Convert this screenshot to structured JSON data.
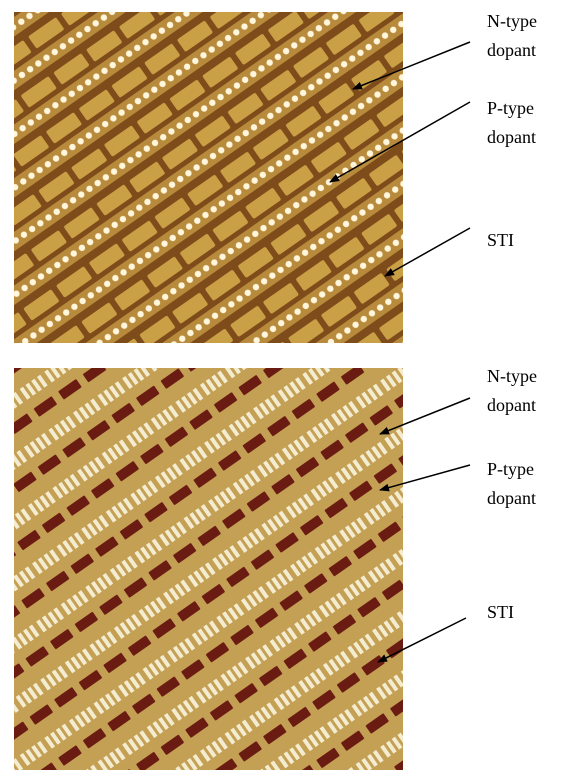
{
  "panels": [
    {
      "annotations": [
        {
          "lines": [
            "N-type",
            "dopant"
          ]
        },
        {
          "lines": [
            "P-type",
            "dopant"
          ]
        },
        {
          "lines": [
            "STI"
          ]
        }
      ]
    },
    {
      "annotations": [
        {
          "lines": [
            "N-type",
            "dopant"
          ]
        },
        {
          "lines": [
            "P-type",
            "dopant"
          ]
        },
        {
          "lines": [
            "STI"
          ]
        }
      ]
    }
  ]
}
